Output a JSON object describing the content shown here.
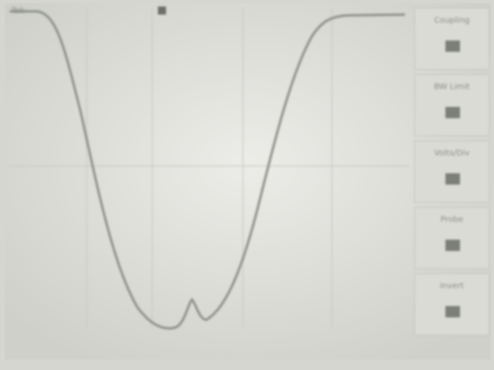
{
  "header": {
    "brand": "Tek"
  },
  "menu": {
    "items": [
      "Coupling",
      "BW Limit",
      "Volts/Div",
      "Probe",
      "Invert"
    ]
  }
}
